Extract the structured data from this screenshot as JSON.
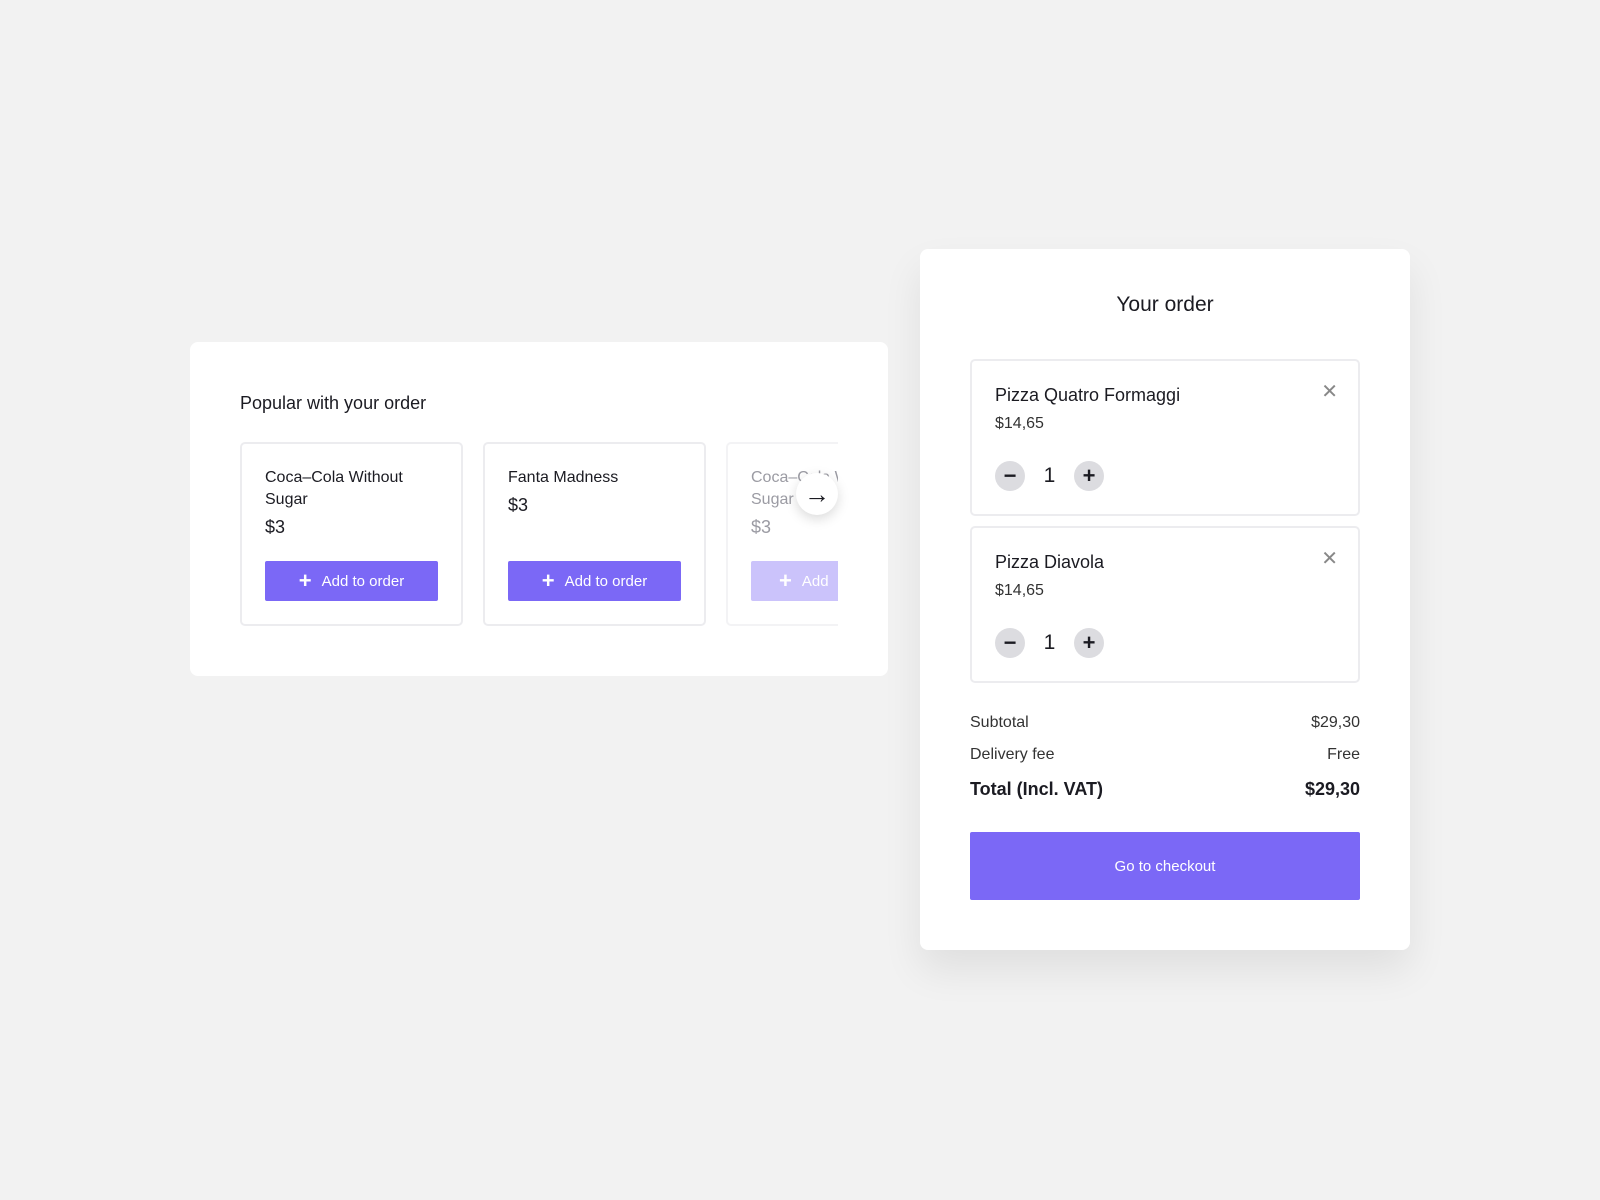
{
  "popular": {
    "title": "Popular with your order",
    "add_label": "Add to order",
    "add_label_partial": "Add",
    "products": [
      {
        "name": "Coca–Cola Without Sugar",
        "price": "$3"
      },
      {
        "name": "Fanta Madness",
        "price": "$3"
      },
      {
        "name": "Coca–Cola Without Sugar",
        "price": "$3"
      }
    ]
  },
  "order": {
    "title": "Your order",
    "items": [
      {
        "name": "Pizza Quatro Formaggi",
        "price": "$14,65",
        "qty": "1"
      },
      {
        "name": "Pizza Diavola",
        "price": "$14,65",
        "qty": "1"
      }
    ],
    "subtotal_label": "Subtotal",
    "subtotal": "$29,30",
    "delivery_label": "Delivery fee",
    "delivery": "Free",
    "total_label": "Total (Incl. VAT)",
    "total": "$29,30",
    "checkout_label": "Go to checkout"
  },
  "colors": {
    "accent": "#7b68f6",
    "accent_disabled": "#cbc3fb",
    "background": "#f2f2f2"
  }
}
